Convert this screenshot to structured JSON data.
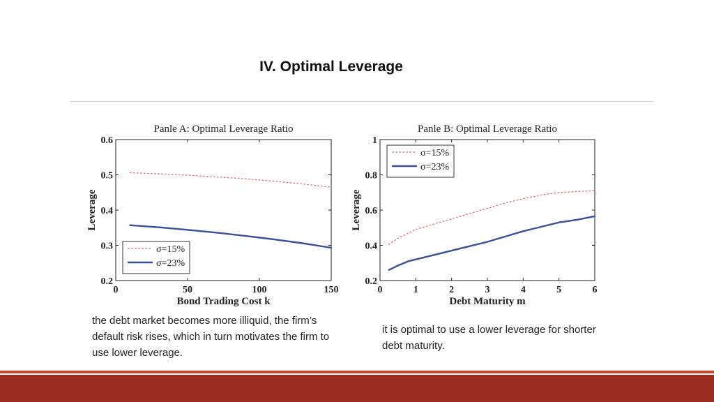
{
  "slide": {
    "title": "IV. Optimal Leverage",
    "caption_a": "the debt market becomes more illiquid, the firm’s default risk rises, which in turn motivates the firm to use lower leverage.",
    "caption_b": "it is optimal to use a lower leverage for shorter debt maturity.",
    "colors": {
      "accent": "#9b2b1f",
      "accent_line": "#c7472c",
      "series_15": "#e0737a",
      "series_23": "#3a4f9c"
    }
  },
  "chart_data": [
    {
      "type": "line",
      "title": "Panle A: Optimal Leverage Ratio",
      "xlabel": "Bond Trading Cost k",
      "ylabel": "Leverage",
      "xlim": [
        0,
        150
      ],
      "ylim": [
        0.2,
        0.6
      ],
      "xticks": [
        0,
        50,
        100,
        150
      ],
      "yticks": [
        0.2,
        0.3,
        0.4,
        0.5,
        0.6
      ],
      "xtick_labels": [
        "0",
        "50",
        "100",
        "150"
      ],
      "ytick_labels": [
        "0.2",
        "0.3",
        "0.4",
        "0.5",
        "0.6"
      ],
      "legend": "bottom-left",
      "series": [
        {
          "name": "σ=15%",
          "style": "dotted",
          "x": [
            10,
            30,
            50,
            70,
            90,
            110,
            130,
            150
          ],
          "y": [
            0.506,
            0.503,
            0.499,
            0.494,
            0.489,
            0.482,
            0.474,
            0.465
          ]
        },
        {
          "name": "σ=23%",
          "style": "solid",
          "x": [
            10,
            30,
            50,
            70,
            90,
            110,
            130,
            150
          ],
          "y": [
            0.357,
            0.351,
            0.344,
            0.336,
            0.327,
            0.317,
            0.306,
            0.293
          ]
        }
      ]
    },
    {
      "type": "line",
      "title": "Panle B: Optimal Leverage Ratio",
      "xlabel": "Debt Maturity m",
      "ylabel": "Leverage",
      "xlim": [
        0,
        6
      ],
      "ylim": [
        0.2,
        1
      ],
      "xticks": [
        0,
        1,
        2,
        3,
        4,
        5,
        6
      ],
      "yticks": [
        0.2,
        0.4,
        0.6,
        0.8,
        1
      ],
      "xtick_labels": [
        "0",
        "1",
        "2",
        "3",
        "4",
        "5",
        "6"
      ],
      "ytick_labels": [
        "0.2",
        "0.4",
        "0.6",
        "0.8",
        "1"
      ],
      "legend": "top-left",
      "series": [
        {
          "name": "σ=15%",
          "style": "dotted",
          "x": [
            0.25,
            0.5,
            1,
            1.5,
            2,
            2.5,
            3,
            3.5,
            4,
            4.5,
            5,
            5.5,
            6
          ],
          "y": [
            0.405,
            0.44,
            0.49,
            0.52,
            0.55,
            0.58,
            0.61,
            0.64,
            0.665,
            0.685,
            0.7,
            0.705,
            0.71
          ]
        },
        {
          "name": "σ=23%",
          "style": "solid",
          "x": [
            0.25,
            0.5,
            0.8,
            1,
            1.5,
            2,
            2.5,
            3,
            3.5,
            4,
            4.5,
            5,
            5.5,
            6
          ],
          "y": [
            0.26,
            0.285,
            0.31,
            0.32,
            0.345,
            0.37,
            0.395,
            0.42,
            0.45,
            0.48,
            0.505,
            0.53,
            0.545,
            0.565
          ]
        }
      ]
    }
  ]
}
